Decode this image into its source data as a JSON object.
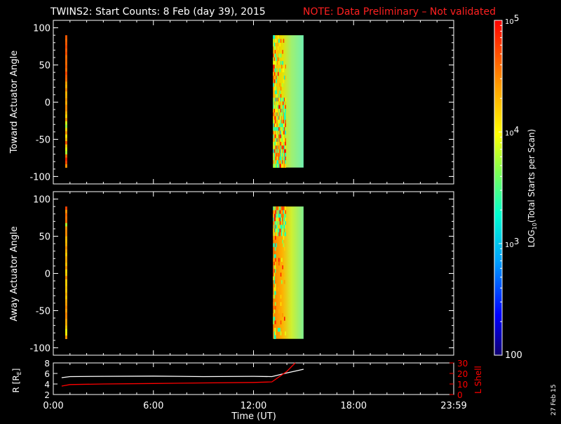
{
  "title": {
    "main": "TWINS2: Start Counts:  8 Feb (day  39), 2015",
    "note": "NOTE: Data Preliminary – Not validated",
    "note_color": "#ff2020"
  },
  "side_date": "27 Feb 15",
  "chart_data": [
    {
      "type": "heatmap",
      "name": "toward-panel",
      "ylabel": "Toward Actuator Angle",
      "ylim": [
        -110,
        110
      ],
      "yticks": [
        100,
        50,
        0,
        -50,
        -100
      ],
      "xlim_hours": [
        0,
        24
      ],
      "bands": [
        {
          "x_start": "00:43",
          "x_end": "00:50",
          "y_min": -88,
          "y_max": 90,
          "dominant_log10": 4.45
        },
        {
          "x_start": "13:10",
          "x_end": "15:00",
          "y_min": -88,
          "y_max": 90,
          "dominant_log10": 3.9
        }
      ]
    },
    {
      "type": "heatmap",
      "name": "away-panel",
      "ylabel": "Away Actuator Angle",
      "ylim": [
        -110,
        110
      ],
      "yticks": [
        100,
        50,
        0,
        -50,
        -100
      ],
      "xlim_hours": [
        0,
        24
      ],
      "bands": [
        {
          "x_start": "00:43",
          "x_end": "00:50",
          "y_min": -88,
          "y_max": 90,
          "dominant_log10": 4.3
        },
        {
          "x_start": "13:10",
          "x_end": "15:00",
          "y_min": -88,
          "y_max": 90,
          "dominant_log10": 4.0
        }
      ]
    },
    {
      "type": "line",
      "name": "orbit-panel",
      "ylabel_left": "R [R",
      "ylabel_left_sub": "E",
      "ylabel_left_end": "]",
      "ylabel_right": "L Shell",
      "ylim_left": [
        2,
        8
      ],
      "yticks_left": [
        8,
        6,
        4,
        2
      ],
      "ylim_right": [
        0,
        30
      ],
      "yticks_right": [
        30,
        20,
        10,
        0
      ],
      "xlabel": "Time (UT)",
      "xticks": [
        "0:00",
        "6:00",
        "12:00",
        "18:00",
        "23:59"
      ],
      "series": [
        {
          "axis": "left",
          "color": "#ffffff",
          "x": [
            0.5,
            1,
            3,
            6,
            9,
            12,
            13.1,
            14,
            15
          ],
          "y": [
            5.2,
            5.4,
            5.45,
            5.5,
            5.4,
            5.45,
            5.4,
            6.1,
            6.8
          ]
        },
        {
          "axis": "right",
          "color": "#ff0000",
          "x": [
            0.5,
            1,
            3,
            6,
            9,
            12,
            13.1,
            14,
            14.5
          ],
          "y": [
            8,
            9.5,
            10,
            10.5,
            11,
            11.5,
            12,
            22,
            30
          ]
        }
      ]
    }
  ],
  "colorbar": {
    "label_prefix": "LOG",
    "label_sub": "10",
    "label_suffix": "(Total Starts per Scan)",
    "ticks": [
      {
        "base": "10",
        "exp": "5",
        "log10": 5
      },
      {
        "base": "10",
        "exp": "4",
        "log10": 4
      },
      {
        "base": "10",
        "exp": "3",
        "log10": 3
      },
      {
        "base": "100",
        "exp": "",
        "log10": 2
      }
    ],
    "range_log10": [
      2,
      5
    ]
  }
}
